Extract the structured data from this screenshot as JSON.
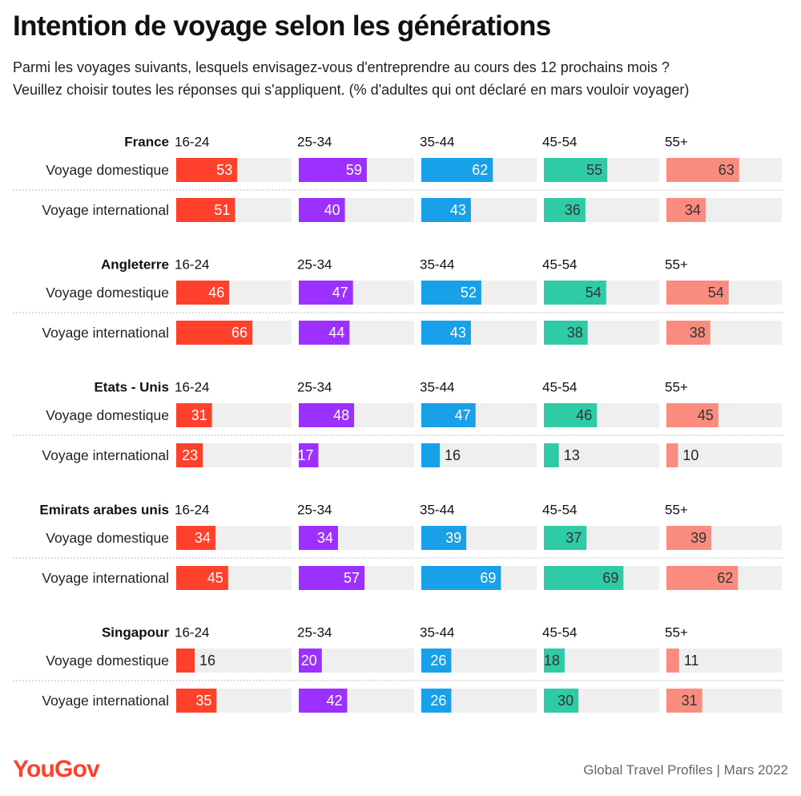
{
  "title": "Intention de voyage selon les générations",
  "subtitle_line1": "Parmi les voyages suivants, lesquels envisagez-vous d'entreprendre au cours des 12 prochains mois ?",
  "subtitle_line2": "Veuillez choisir toutes les réponses qui s'appliquent. (% d'adultes qui ont déclaré en mars vouloir voyager)",
  "footer": {
    "logo": "YouGov",
    "source": "Global Travel Profiles | Mars 2022"
  },
  "colors": [
    "#ff412c",
    "#9b30ff",
    "#18a0e8",
    "#2ecba6",
    "#fa8c7f"
  ],
  "chart_data": {
    "type": "bar",
    "orientation": "horizontal",
    "xlim": [
      0,
      100
    ],
    "age_groups": [
      "16-24",
      "25-34",
      "35-44",
      "45-54",
      "55+"
    ],
    "row_labels": [
      "Voyage domestique",
      "Voyage international"
    ],
    "countries": [
      {
        "name": "France",
        "values": [
          [
            53,
            59,
            62,
            55,
            63
          ],
          [
            51,
            40,
            43,
            36,
            34
          ]
        ]
      },
      {
        "name": "Angleterre",
        "values": [
          [
            46,
            47,
            52,
            54,
            54
          ],
          [
            66,
            44,
            43,
            38,
            38
          ]
        ]
      },
      {
        "name": "Etats - Unis",
        "values": [
          [
            31,
            48,
            47,
            46,
            45
          ],
          [
            23,
            17,
            16,
            13,
            10
          ]
        ]
      },
      {
        "name": "Emirats arabes unis",
        "values": [
          [
            34,
            34,
            39,
            37,
            39
          ],
          [
            45,
            57,
            69,
            69,
            62
          ]
        ]
      },
      {
        "name": "Singapour",
        "values": [
          [
            16,
            20,
            26,
            18,
            11
          ],
          [
            35,
            42,
            26,
            30,
            31
          ]
        ]
      }
    ]
  }
}
